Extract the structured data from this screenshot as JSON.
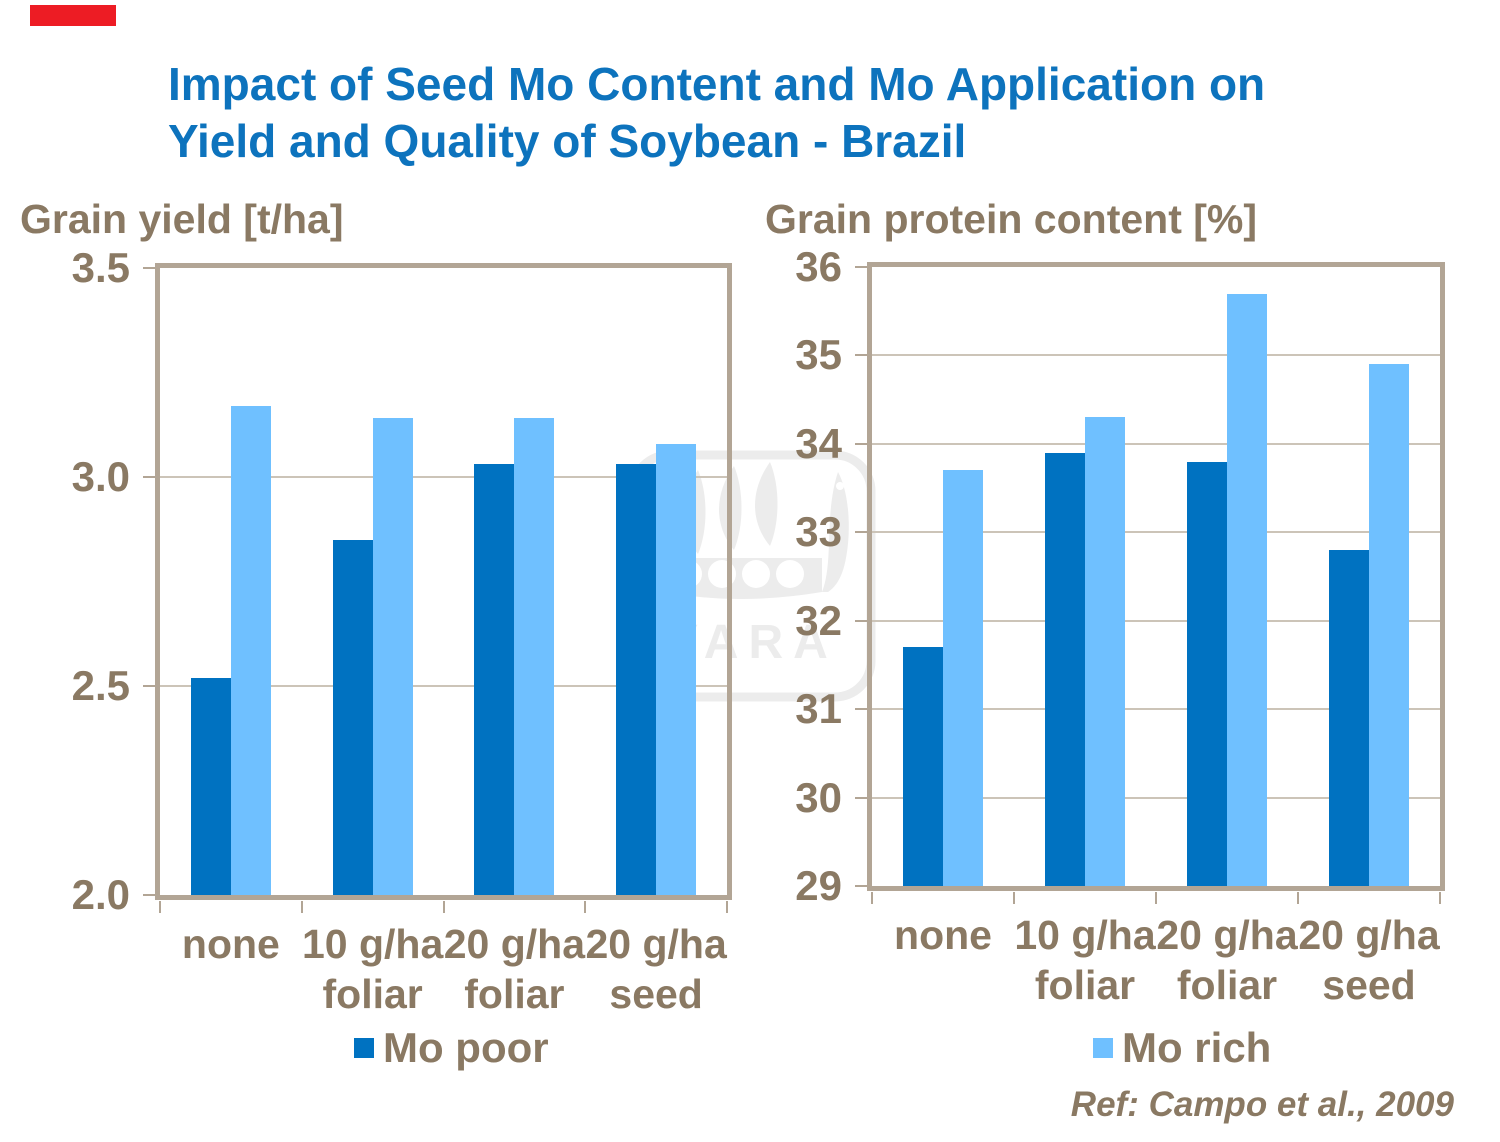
{
  "title": {
    "line1": "Impact of Seed Mo Content and Mo Application on",
    "line2": "Yield and Quality of Soybean - Brazil"
  },
  "reference": "Ref: Campo et al., 2009",
  "watermark": {
    "text": "YARA"
  },
  "colors": {
    "title_blue": "#0d73bd",
    "text_brown": "#8a7963",
    "axis_tan": "#b2a595",
    "gridline": "#ccc4b8",
    "accent_red": "#ed1c24",
    "watermark_gray": "#ececec",
    "mo_poor_blue": "#0072c1",
    "mo_rich_blue": "#6fc0ff"
  },
  "chart_data": [
    {
      "type": "bar",
      "title": "Grain yield [t/ha]",
      "categories": [
        [
          "none",
          ""
        ],
        [
          "10 g/ha",
          "foliar"
        ],
        [
          "20 g/ha",
          "foliar"
        ],
        [
          "20 g/ha",
          "seed"
        ]
      ],
      "series": [
        {
          "name": "Mo poor",
          "color": "#0072c1",
          "values": [
            2.52,
            2.85,
            3.03,
            3.03
          ]
        },
        {
          "name": "Mo rich",
          "color": "#6fc0ff",
          "values": [
            3.17,
            3.14,
            3.14,
            3.08
          ]
        }
      ],
      "ylim": [
        2.0,
        3.5
      ],
      "yticks": [
        2.0,
        2.5,
        3.0,
        3.5
      ],
      "ytick_decimals": 1,
      "grid": "horizontal",
      "legend_position": "bottom",
      "legend_label": "Mo poor"
    },
    {
      "type": "bar",
      "title": "Grain protein content [%]",
      "categories": [
        [
          "none",
          ""
        ],
        [
          "10 g/ha",
          "foliar"
        ],
        [
          "20 g/ha",
          "foliar"
        ],
        [
          "20 g/ha",
          "seed"
        ]
      ],
      "series": [
        {
          "name": "Mo poor",
          "color": "#0072c1",
          "values": [
            31.7,
            33.9,
            33.8,
            32.8
          ]
        },
        {
          "name": "Mo rich",
          "color": "#6fc0ff",
          "values": [
            33.7,
            34.3,
            35.7,
            34.9
          ]
        }
      ],
      "ylim": [
        29,
        36
      ],
      "yticks": [
        29,
        30,
        31,
        32,
        33,
        34,
        35,
        36
      ],
      "ytick_decimals": 0,
      "grid": "horizontal",
      "legend_position": "bottom",
      "legend_label": "Mo rich"
    }
  ]
}
